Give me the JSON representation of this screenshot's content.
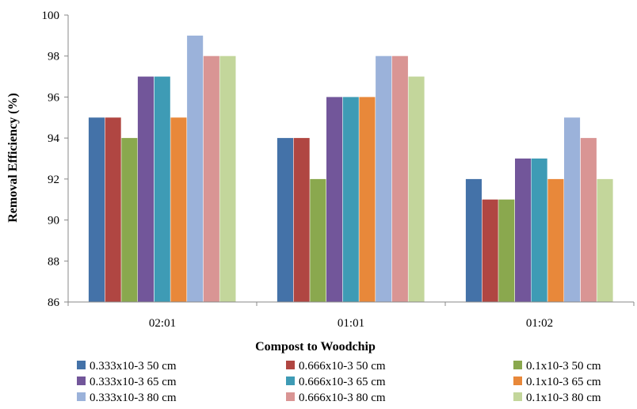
{
  "chart_data": {
    "type": "bar",
    "title": "",
    "xlabel": "Compost to Woodchip",
    "ylabel": "Removal Efficiency (%)",
    "ylim": [
      86,
      100
    ],
    "yticks": [
      86,
      88,
      90,
      92,
      94,
      96,
      98,
      100
    ],
    "grid": false,
    "legend_position": "bottom",
    "categories": [
      "02:01",
      "01:01",
      "01:02"
    ],
    "series": [
      {
        "name": "0.333x10-3 50 cm",
        "color": "#4472A8",
        "values": [
          95,
          94,
          92
        ]
      },
      {
        "name": "0.666x10-3 50 cm",
        "color": "#B04642",
        "values": [
          95,
          94,
          91
        ]
      },
      {
        "name": "0.1x10-3 50 cm",
        "color": "#8AA84E",
        "values": [
          94,
          92,
          91
        ]
      },
      {
        "name": "0.333x10-3 65 cm",
        "color": "#72569A",
        "values": [
          97,
          96,
          93
        ]
      },
      {
        "name": "0.666x10-3 65 cm",
        "color": "#3E9BB5",
        "values": [
          97,
          96,
          93
        ]
      },
      {
        "name": "0.1x10-3 65 cm",
        "color": "#E8883A",
        "values": [
          95,
          96,
          92
        ]
      },
      {
        "name": "0.333x10-3 80 cm",
        "color": "#9BB2DA",
        "values": [
          99,
          98,
          95
        ]
      },
      {
        "name": "0.666x10-3 80 cm",
        "color": "#D99594",
        "values": [
          98,
          98,
          94
        ]
      },
      {
        "name": "0.1x10-3 80 cm",
        "color": "#C3D69B",
        "values": [
          98,
          97,
          92
        ]
      }
    ]
  }
}
